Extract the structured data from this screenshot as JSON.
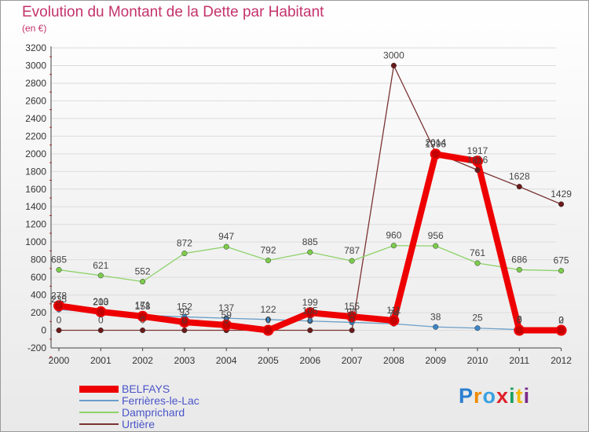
{
  "title": "Evolution du Montant de la Dette par Habitant",
  "unit_label": "(en €)",
  "logo_text": "Proxiti",
  "chart_data": {
    "type": "line",
    "title": "Evolution du Montant de la Dette par Habitant",
    "ylabel": "(en €)",
    "ylim": [
      -200,
      3200
    ],
    "yticks": [
      -200,
      0,
      200,
      400,
      600,
      800,
      1000,
      1200,
      1400,
      1600,
      1800,
      2000,
      2200,
      2400,
      2600,
      2800,
      3000,
      3200
    ],
    "x": [
      "2000",
      "2001",
      "2002",
      "2003",
      "2004",
      "2005",
      "2006",
      "2007",
      "2008",
      "2009",
      "2010",
      "2011",
      "2012"
    ],
    "legend_position": "bottom-left",
    "grid": "horizontal",
    "series": [
      {
        "name": "Urtière",
        "color": "#7a3232",
        "marker": "#6a1a1a",
        "values": [
          0,
          0,
          0,
          0,
          0,
          0,
          0,
          0,
          3000,
          2014,
          1816,
          1628,
          1429
        ],
        "labels": [
          "0",
          "0",
          "0",
          "0",
          "0",
          "0",
          "0",
          "0",
          "3000",
          "2014",
          "1816",
          "1628",
          "1429"
        ]
      },
      {
        "name": "Damprichard",
        "color": "#8ed26a",
        "marker": "#7ccc4c",
        "values": [
          685,
          621,
          552,
          872,
          947,
          792,
          885,
          787,
          960,
          956,
          761,
          686,
          675
        ],
        "labels": [
          "685",
          "621",
          "552",
          "872",
          "947",
          "792",
          "885",
          "787",
          "960",
          "956",
          "761",
          "686",
          "675"
        ]
      },
      {
        "name": "Ferrières-le-Lac",
        "color": "#6a9ec8",
        "marker": "#3a86c8",
        "values": [
          235,
          203,
          171,
          152,
          137,
          122,
          105,
          90,
          74,
          38,
          25,
          8,
          2
        ],
        "labels": [
          "235",
          "203",
          "171",
          "152",
          "137",
          "122",
          "105",
          "90",
          "74",
          "38",
          "25",
          "8",
          "2"
        ]
      },
      {
        "name": "BELFAYS",
        "color": "#ee0000",
        "marker": "#dd1111",
        "values": [
          278,
          210,
          158,
          93,
          59,
          0,
          199,
          155,
          111,
          1996,
          1917,
          0,
          0
        ],
        "labels": [
          "278",
          "210",
          "158",
          "93",
          "59",
          "0",
          "199",
          "155",
          "111",
          "1996",
          "1917",
          "0",
          "0"
        ]
      }
    ]
  }
}
